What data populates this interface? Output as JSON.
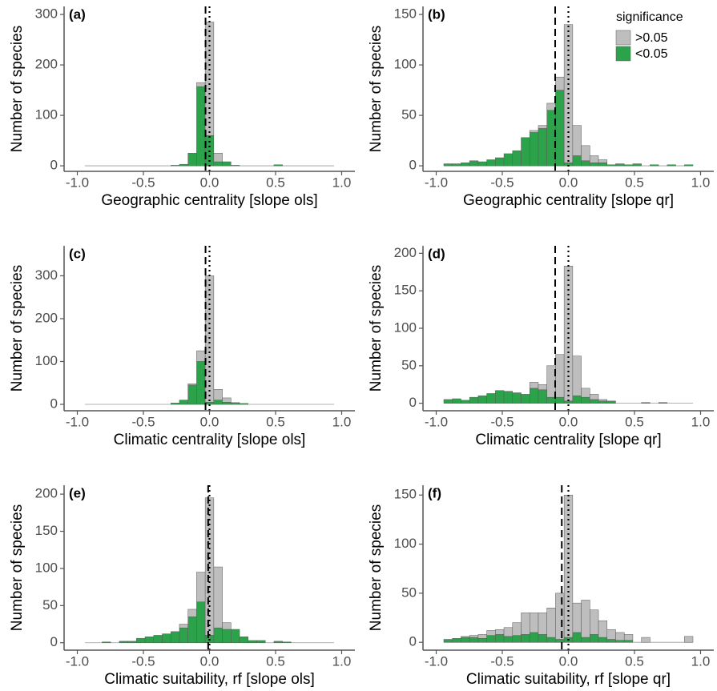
{
  "chart_data": [
    {
      "type": "histogram",
      "panel_label": "(a)",
      "x_label": "Geographic centrality [slope ols]",
      "y_label": "Number of species",
      "bins": [
        -0.9425,
        -0.8775,
        -0.8125,
        -0.7475,
        -0.6825,
        -0.6175,
        -0.5525,
        -0.4875,
        -0.4225,
        -0.3575,
        -0.2925,
        -0.2275,
        -0.1625,
        -0.0975,
        -0.0325,
        0.0325,
        0.0975,
        0.1625,
        0.2275,
        0.2925,
        0.3575,
        0.4225,
        0.4875,
        0.5525,
        0.6175,
        0.6825,
        0.7475,
        0.8125,
        0.8775,
        0.9425
      ],
      "series": [
        {
          "name": "<0.05",
          "color": "#2ca24b",
          "values": [
            0,
            0,
            0,
            0,
            0,
            0,
            0,
            0,
            0,
            0,
            1,
            3,
            25,
            157,
            60,
            8,
            8,
            1,
            0,
            0,
            0,
            0,
            2,
            0,
            0,
            0,
            0,
            0,
            0
          ]
        },
        {
          "name": ">0.05",
          "color": "#bebebe",
          "values": [
            0,
            0,
            0,
            0,
            0,
            0,
            0,
            0,
            0,
            0,
            0,
            0,
            0,
            8,
            225,
            17,
            0,
            0,
            0,
            0,
            0,
            0,
            0,
            0,
            0,
            0,
            0,
            0,
            0
          ]
        }
      ],
      "dashed_line": -0.03,
      "dotted_line": 0,
      "xlim": [
        -1.1,
        1.1
      ],
      "xticks": [
        {
          "value": -1,
          "label": "-1.0"
        },
        {
          "value": -0.5,
          "label": "-0.5"
        },
        {
          "value": 0,
          "label": "0.0"
        },
        {
          "value": 0.5,
          "label": "0.5"
        },
        {
          "value": 1,
          "label": "1.0"
        }
      ],
      "ylim": [
        -11,
        316
      ],
      "yticks": [
        0,
        100,
        200,
        300
      ],
      "legend": false
    },
    {
      "type": "histogram",
      "panel_label": "(b)",
      "x_label": "Geographic centrality [slope qr]",
      "y_label": "Number of species",
      "bins": [
        -0.9425,
        -0.8775,
        -0.8125,
        -0.7475,
        -0.6825,
        -0.6175,
        -0.5525,
        -0.4875,
        -0.4225,
        -0.3575,
        -0.2925,
        -0.2275,
        -0.1625,
        -0.0975,
        -0.0325,
        0.0325,
        0.0975,
        0.1625,
        0.2275,
        0.2925,
        0.3575,
        0.4225,
        0.4875,
        0.5525,
        0.6175,
        0.6825,
        0.7475,
        0.8125,
        0.8775,
        0.9425
      ],
      "series": [
        {
          "name": "<0.05",
          "color": "#2ca24b",
          "values": [
            2,
            2,
            3,
            5,
            4,
            6,
            8,
            12,
            15,
            28,
            33,
            37,
            55,
            75,
            3,
            10,
            5,
            3,
            3,
            1,
            2,
            1,
            2,
            0,
            1,
            0,
            1,
            0,
            1
          ]
        },
        {
          "name": ">0.05",
          "color": "#bebebe",
          "values": [
            0,
            0,
            0,
            0,
            0,
            0,
            0,
            0,
            0,
            0,
            2,
            3,
            7,
            13,
            137,
            30,
            15,
            7,
            3,
            0,
            0,
            0,
            0,
            0,
            0,
            0,
            0,
            0,
            0
          ]
        }
      ],
      "dashed_line": -0.1,
      "dotted_line": 0,
      "xlim": [
        -1.1,
        1.1
      ],
      "xticks": [
        {
          "value": -1,
          "label": "-1.0"
        },
        {
          "value": -0.5,
          "label": "-0.5"
        },
        {
          "value": 0,
          "label": "0.0"
        },
        {
          "value": 0.5,
          "label": "0.5"
        },
        {
          "value": 1,
          "label": "1.0"
        }
      ],
      "ylim": [
        -5.5,
        158
      ],
      "yticks": [
        0,
        50,
        100,
        150
      ],
      "legend": true,
      "legend_title": "significance"
    },
    {
      "type": "histogram",
      "panel_label": "(c)",
      "x_label": "Climatic centrality [slope ols]",
      "y_label": "Number of species",
      "bins": [
        -0.9425,
        -0.8775,
        -0.8125,
        -0.7475,
        -0.6825,
        -0.6175,
        -0.5525,
        -0.4875,
        -0.4225,
        -0.3575,
        -0.2925,
        -0.2275,
        -0.1625,
        -0.0975,
        -0.0325,
        0.0325,
        0.0975,
        0.1625,
        0.2275,
        0.2925,
        0.3575,
        0.4225,
        0.4875,
        0.5525,
        0.6175,
        0.6825,
        0.7475,
        0.8125,
        0.8775,
        0.9425
      ],
      "series": [
        {
          "name": "<0.05",
          "color": "#2ca24b",
          "values": [
            0,
            0,
            0,
            0,
            0,
            0,
            0,
            0,
            0,
            0,
            3,
            10,
            45,
            100,
            5,
            10,
            5,
            4,
            2,
            0,
            0,
            0,
            0,
            0,
            0,
            0,
            0,
            0,
            0
          ]
        },
        {
          "name": ">0.05",
          "color": "#bebebe",
          "values": [
            0,
            0,
            0,
            0,
            0,
            0,
            0,
            0,
            0,
            0,
            0,
            0,
            3,
            25,
            295,
            25,
            10,
            0,
            0,
            0,
            0,
            0,
            0,
            0,
            0,
            0,
            0,
            0,
            0
          ]
        }
      ],
      "dashed_line": -0.03,
      "dotted_line": 0,
      "xlim": [
        -1.1,
        1.1
      ],
      "xticks": [
        {
          "value": -1,
          "label": "-1.0"
        },
        {
          "value": -0.5,
          "label": "-0.5"
        },
        {
          "value": 0,
          "label": "0.0"
        },
        {
          "value": 0.5,
          "label": "0.5"
        },
        {
          "value": 1,
          "label": "1.0"
        }
      ],
      "ylim": [
        -15,
        370
      ],
      "yticks": [
        0,
        100,
        200,
        300
      ],
      "legend": false
    },
    {
      "type": "histogram",
      "panel_label": "(d)",
      "x_label": "Climatic centrality [slope qr]",
      "y_label": "Number of species",
      "bins": [
        -0.9425,
        -0.8775,
        -0.8125,
        -0.7475,
        -0.6825,
        -0.6175,
        -0.5525,
        -0.4875,
        -0.4225,
        -0.3575,
        -0.2925,
        -0.2275,
        -0.1625,
        -0.0975,
        -0.0325,
        0.0325,
        0.0975,
        0.1625,
        0.2275,
        0.2925,
        0.3575,
        0.4225,
        0.4875,
        0.5525,
        0.6175,
        0.6825,
        0.7475,
        0.8125,
        0.8775,
        0.9425
      ],
      "series": [
        {
          "name": "<0.05",
          "color": "#2ca24b",
          "values": [
            5,
            6,
            4,
            8,
            10,
            13,
            17,
            16,
            14,
            12,
            20,
            18,
            8,
            8,
            3,
            10,
            8,
            5,
            3,
            3,
            0,
            0,
            0,
            1,
            0,
            1,
            0,
            0,
            0
          ]
        },
        {
          "name": ">0.05",
          "color": "#bebebe",
          "values": [
            0,
            0,
            0,
            0,
            0,
            0,
            0,
            0,
            0,
            0,
            8,
            7,
            42,
            57,
            180,
            53,
            12,
            7,
            2,
            0,
            0,
            0,
            0,
            0,
            0,
            0,
            0,
            0,
            0
          ]
        }
      ],
      "dashed_line": -0.1,
      "dotted_line": 0,
      "xlim": [
        -1.1,
        1.1
      ],
      "xticks": [
        {
          "value": -1,
          "label": "-1.0"
        },
        {
          "value": -0.5,
          "label": "-0.5"
        },
        {
          "value": 0,
          "label": "0.0"
        },
        {
          "value": 0.5,
          "label": "0.5"
        },
        {
          "value": 1,
          "label": "1.0"
        }
      ],
      "ylim": [
        -10,
        210
      ],
      "yticks": [
        0,
        50,
        100,
        150,
        200
      ],
      "legend": false
    },
    {
      "type": "histogram",
      "panel_label": "(e)",
      "x_label": "Climatic suitability, rf [slope ols]",
      "y_label": "Number of species",
      "bins": [
        -0.9425,
        -0.8775,
        -0.8125,
        -0.7475,
        -0.6825,
        -0.6175,
        -0.5525,
        -0.4875,
        -0.4225,
        -0.3575,
        -0.2925,
        -0.2275,
        -0.1625,
        -0.0975,
        -0.0325,
        0.0325,
        0.0975,
        0.1625,
        0.2275,
        0.2925,
        0.3575,
        0.4225,
        0.4875,
        0.5525,
        0.6175,
        0.6825,
        0.7475,
        0.8125,
        0.8775,
        0.9425
      ],
      "series": [
        {
          "name": "<0.05",
          "color": "#2ca24b",
          "values": [
            0,
            0,
            1,
            0,
            2,
            2,
            6,
            8,
            10,
            12,
            15,
            20,
            35,
            55,
            10,
            20,
            18,
            18,
            8,
            3,
            3,
            0,
            2,
            1,
            0,
            0,
            0,
            0,
            0
          ]
        },
        {
          "name": ">0.05",
          "color": "#bebebe",
          "values": [
            0,
            0,
            0,
            0,
            0,
            0,
            0,
            0,
            0,
            0,
            0,
            5,
            10,
            40,
            185,
            82,
            9,
            0,
            0,
            0,
            0,
            0,
            0,
            0,
            0,
            0,
            0,
            0,
            0
          ]
        }
      ],
      "dashed_line": -0.01,
      "dotted_line": 0,
      "xlim": [
        -1.1,
        1.1
      ],
      "xticks": [
        {
          "value": -1,
          "label": "-1.0"
        },
        {
          "value": -0.5,
          "label": "-0.5"
        },
        {
          "value": 0,
          "label": "0.0"
        },
        {
          "value": 0.5,
          "label": "0.5"
        },
        {
          "value": 1,
          "label": "1.0"
        }
      ],
      "ylim": [
        -10,
        212
      ],
      "yticks": [
        0,
        50,
        100,
        150,
        200
      ],
      "legend": false
    },
    {
      "type": "histogram",
      "panel_label": "(f)",
      "x_label": "Climatic suitability, rf [slope qr]",
      "y_label": "Number of species",
      "bins": [
        -0.9425,
        -0.8775,
        -0.8125,
        -0.7475,
        -0.6825,
        -0.6175,
        -0.5525,
        -0.4875,
        -0.4225,
        -0.3575,
        -0.2925,
        -0.2275,
        -0.1625,
        -0.0975,
        -0.0325,
        0.0325,
        0.0975,
        0.1625,
        0.2275,
        0.2925,
        0.3575,
        0.4225,
        0.4875,
        0.5525,
        0.6175,
        0.6825,
        0.7475,
        0.8125,
        0.8775,
        0.9425
      ],
      "series": [
        {
          "name": "<0.05",
          "color": "#2ca24b",
          "values": [
            3,
            4,
            5,
            5,
            4,
            7,
            8,
            6,
            7,
            8,
            10,
            8,
            5,
            3,
            5,
            10,
            5,
            8,
            5,
            3,
            2,
            2,
            0,
            0,
            0,
            0,
            0,
            0,
            0
          ]
        },
        {
          "name": ">0.05",
          "color": "#bebebe",
          "values": [
            0,
            0,
            1,
            2,
            4,
            5,
            5,
            9,
            13,
            22,
            20,
            22,
            30,
            47,
            145,
            30,
            38,
            25,
            17,
            10,
            8,
            6,
            0,
            5,
            0,
            0,
            0,
            0,
            6
          ]
        }
      ],
      "dashed_line": -0.05,
      "dotted_line": 0,
      "xlim": [
        -1.1,
        1.1
      ],
      "xticks": [
        {
          "value": -1,
          "label": "-1.0"
        },
        {
          "value": -0.5,
          "label": "-0.5"
        },
        {
          "value": 0,
          "label": "0.0"
        },
        {
          "value": 0.5,
          "label": "0.5"
        },
        {
          "value": 1,
          "label": "1.0"
        }
      ],
      "ylim": [
        -8,
        160
      ],
      "yticks": [
        0,
        50,
        100,
        150
      ],
      "legend": false
    }
  ]
}
